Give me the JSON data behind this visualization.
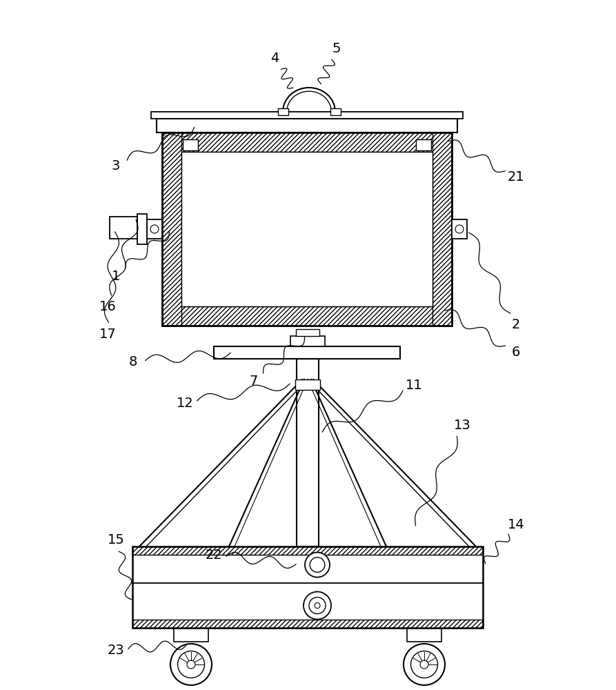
{
  "bg_color": "#ffffff",
  "line_color": "#000000",
  "figsize": [
    8.93,
    10.0
  ],
  "dpi": 100
}
